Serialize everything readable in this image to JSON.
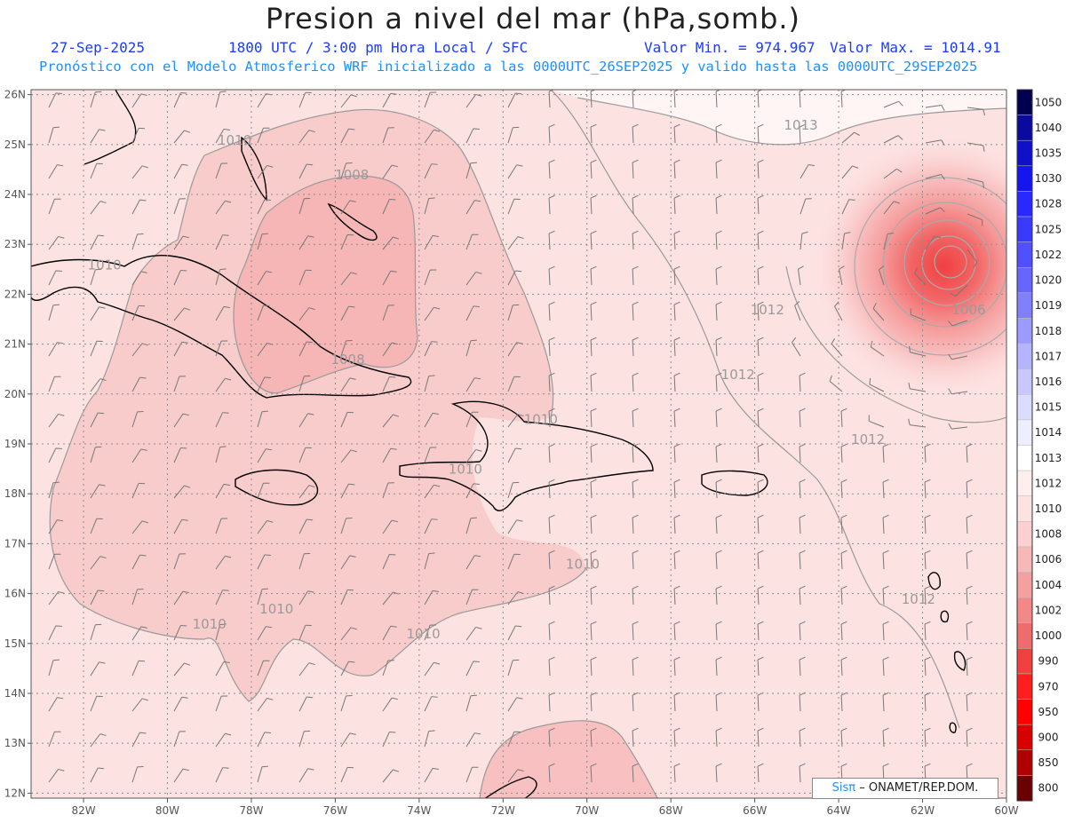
{
  "header": {
    "title": "Presion a nivel del mar (hPa,somb.)",
    "date": "27-Sep-2025",
    "time_label": "1800 UTC / 3:00 pm Hora Local / SFC",
    "min_label": "Valor Min. = 974.967",
    "max_label": "Valor Max. = 1014.91",
    "model_line": "Pronóstico con el Modelo Atmosferico WRF inicializado a las 0000UTC_26SEP2025 y valido hasta las  0000UTC_29SEP2025"
  },
  "map": {
    "lon_labels": [
      "82W",
      "80W",
      "78W",
      "76W",
      "74W",
      "72W",
      "70W",
      "68W",
      "66W",
      "64W",
      "62W",
      "60W"
    ],
    "lat_labels": [
      "26N",
      "25N",
      "24N",
      "23N",
      "22N",
      "21N",
      "20N",
      "19N",
      "18N",
      "17N",
      "16N",
      "15N",
      "14N",
      "13N",
      "12N"
    ],
    "contour_labels": [
      {
        "text": "1010",
        "lon": -78.4,
        "lat": 25.0
      },
      {
        "text": "1008",
        "lon": -75.6,
        "lat": 24.3
      },
      {
        "text": "1010",
        "lon": -81.5,
        "lat": 22.5
      },
      {
        "text": "1008",
        "lon": -75.7,
        "lat": 20.6
      },
      {
        "text": "1010",
        "lon": -71.1,
        "lat": 19.4
      },
      {
        "text": "1010",
        "lon": -72.9,
        "lat": 18.4
      },
      {
        "text": "1010",
        "lon": -70.1,
        "lat": 16.5
      },
      {
        "text": "1010",
        "lon": -79.0,
        "lat": 15.3
      },
      {
        "text": "1010",
        "lon": -77.4,
        "lat": 15.6
      },
      {
        "text": "1010",
        "lon": -73.9,
        "lat": 15.1
      },
      {
        "text": "1013",
        "lon": -64.9,
        "lat": 25.3
      },
      {
        "text": "1012",
        "lon": -65.7,
        "lat": 21.6
      },
      {
        "text": "1012",
        "lon": -66.4,
        "lat": 20.3
      },
      {
        "text": "1012",
        "lon": -63.3,
        "lat": 19.0
      },
      {
        "text": "1012",
        "lon": -62.1,
        "lat": 15.8
      },
      {
        "text": "1006",
        "lon": -60.9,
        "lat": 21.6
      }
    ],
    "low_center": {
      "lon": -61.4,
      "lat": 22.6,
      "min_pressure": 974.967
    }
  },
  "legend": {
    "levels": [
      "1050",
      "1040",
      "1035",
      "1030",
      "1028",
      "1025",
      "1022",
      "1020",
      "1019",
      "1018",
      "1017",
      "1016",
      "1015",
      "1014",
      "1013",
      "1012",
      "1010",
      "1008",
      "1006",
      "1004",
      "1002",
      "1000",
      "990",
      "970",
      "950",
      "900",
      "850",
      "800"
    ],
    "colors": [
      "#00004f",
      "#0a0a9e",
      "#1010c8",
      "#1515f0",
      "#2828ff",
      "#3a3aff",
      "#5050ff",
      "#6666ff",
      "#8080ff",
      "#9a9aff",
      "#b4b4ff",
      "#c8c8ff",
      "#dcdcff",
      "#eeeeff",
      "#ffffff",
      "#ffeeee",
      "#fde2e2",
      "#fbd0d0",
      "#f8b8b8",
      "#f5a0a0",
      "#f28888",
      "#ef6c6c",
      "#f04040",
      "#ff1e1e",
      "#ff0000",
      "#d80000",
      "#b00000",
      "#6a0000"
    ]
  },
  "credit": {
    "brand": "Sisπ",
    "text": "– ONAMET/REP.DOM."
  },
  "colors": {
    "grid": "#8c8c8c",
    "axis_text": "#555555",
    "coast": "#000000",
    "bg_low": "#fde2e2",
    "bg_zone": "#fad0d0"
  }
}
